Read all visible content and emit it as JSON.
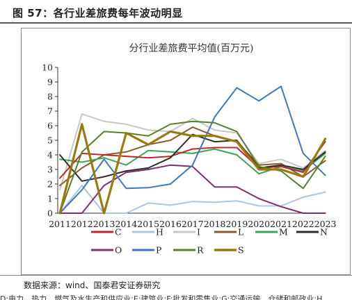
{
  "figure": {
    "title": "图 57：各行业差旅费每年波动明显",
    "source": "数据来源：wind、国泰君安证券研究",
    "note": "D:电力、热力、燃气及水生产和供应业;E:建筑业;F:批发和零售业;G:交通运输、仓储和邮政业;H"
  },
  "chart_data": {
    "type": "line",
    "title": "分行业差旅费平均值(百万元)",
    "xlabel": "",
    "ylabel": "",
    "x": [
      2011,
      2012,
      2013,
      2014,
      2015,
      2016,
      2017,
      2018,
      2019,
      2020,
      2021,
      2022,
      2023
    ],
    "ylim": [
      0,
      10
    ],
    "yticks": [
      0,
      1,
      2,
      3,
      4,
      5,
      6,
      7,
      8,
      9,
      10
    ],
    "grid": false,
    "legend_position": "bottom",
    "series": [
      {
        "name": "C",
        "color": "#c0272d",
        "values": [
          2.4,
          4.1,
          4.0,
          3.9,
          3.8,
          3.9,
          4.4,
          4.5,
          4.5,
          3.1,
          3.2,
          2.8,
          4.9
        ]
      },
      {
        "name": "H",
        "color": "#a9c6e6",
        "values": [
          0.0,
          1.9,
          0.0,
          0.0,
          0.7,
          0.55,
          0.8,
          0.75,
          0.85,
          0.5,
          0.5,
          1.1,
          1.45
        ]
      },
      {
        "name": "I",
        "color": "#c8c8c8",
        "values": [
          1.6,
          6.8,
          6.3,
          6.1,
          5.7,
          5.6,
          6.5,
          5.7,
          5.5,
          3.4,
          3.7,
          3.1,
          4.3
        ]
      },
      {
        "name": "L",
        "color": "#8b5a2b",
        "values": [
          1.9,
          3.1,
          4.0,
          4.2,
          4.7,
          5.0,
          5.9,
          5.3,
          4.9,
          3.3,
          3.4,
          2.5,
          3.6
        ]
      },
      {
        "name": "M",
        "color": "#3aa655",
        "values": [
          3.7,
          3.5,
          3.8,
          3.3,
          4.3,
          4.2,
          4.1,
          4.4,
          4.0,
          2.7,
          3.2,
          2.9,
          4.1
        ]
      },
      {
        "name": "N",
        "color": "#2e2e2e",
        "values": [
          4.0,
          2.2,
          2.5,
          2.9,
          3.1,
          3.8,
          5.4,
          4.9,
          5.0,
          3.1,
          3.3,
          3.0,
          4.2
        ]
      },
      {
        "name": "O",
        "color": "#7b2f6e",
        "values": [
          0.0,
          0.0,
          1.9,
          2.8,
          3.0,
          3.3,
          3.2,
          1.8,
          1.8,
          1.0,
          0.45,
          0.0,
          0.0
        ]
      },
      {
        "name": "P",
        "color": "#3a78bf",
        "values": [
          0.0,
          1.6,
          3.7,
          1.7,
          1.75,
          2.0,
          3.3,
          6.6,
          8.6,
          7.7,
          8.7,
          4.1,
          2.6
        ]
      },
      {
        "name": "R",
        "color": "#5a7f2a",
        "values": [
          0.0,
          4.2,
          5.6,
          5.5,
          5.3,
          6.1,
          6.3,
          6.2,
          5.6,
          3.2,
          2.9,
          1.7,
          3.9
        ]
      },
      {
        "name": "S",
        "color": "#9a7a10",
        "values": [
          0.0,
          6.1,
          0.0,
          5.5,
          4.7,
          5.6,
          5.3,
          5.3,
          4.9,
          3.0,
          3.0,
          2.5,
          5.1
        ]
      }
    ]
  }
}
